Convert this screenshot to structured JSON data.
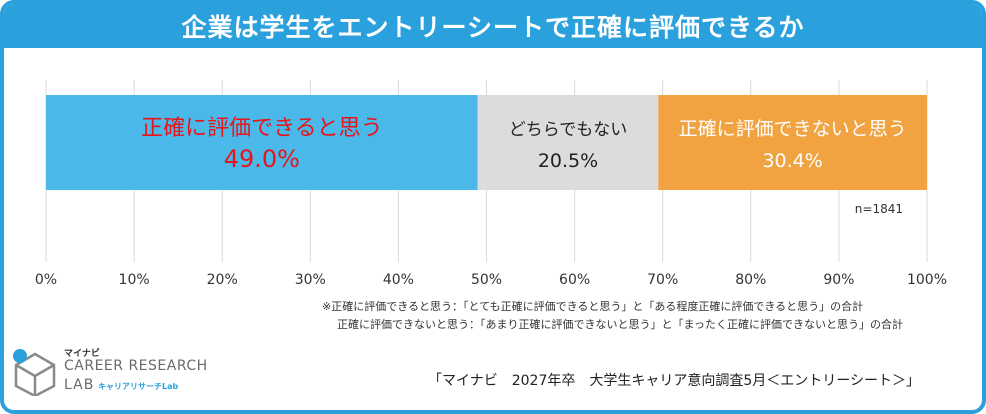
{
  "title": "企業は学生をエントリーシートで正確に評価できるか",
  "chart_data": {
    "type": "bar",
    "orientation": "horizontal-stacked-100",
    "segments": [
      {
        "name": "正確に評価できると思う",
        "value": 49.0,
        "label": "49.0%",
        "color": "#4ab8e8",
        "text_color": "#e8141c"
      },
      {
        "name": "どちらでもない",
        "value": 20.5,
        "label": "20.5%",
        "color": "#dcdcdc",
        "text_color": "#222222"
      },
      {
        "name": "正確に評価できないと思う",
        "value": 30.4,
        "label": "30.4%",
        "color": "#f0a340",
        "text_color": "#ffffff"
      }
    ],
    "xlim": [
      0,
      100
    ],
    "xticks": [
      "0%",
      "10%",
      "20%",
      "30%",
      "40%",
      "50%",
      "60%",
      "70%",
      "80%",
      "90%",
      "100%"
    ],
    "grid": true,
    "sample_note": "n=1841"
  },
  "notes": [
    "※正確に評価できると思う：「とても正確に評価できると思う」と「ある程度正確に評価できると思う」の合計",
    "正確に評価できないと思う：「あまり正確に評価できないと思う」と「まったく正確に評価できないと思う」の合計"
  ],
  "source": "「マイナビ　2027年卒　大学生キャリア意向調査5月＜エントリーシート＞」",
  "logo": {
    "brand": "マイナビ",
    "line1": "CAREER RESEARCH",
    "line2": "LAB",
    "sub": "キャリアリサーチLab",
    "color": "#2aa0dc"
  }
}
